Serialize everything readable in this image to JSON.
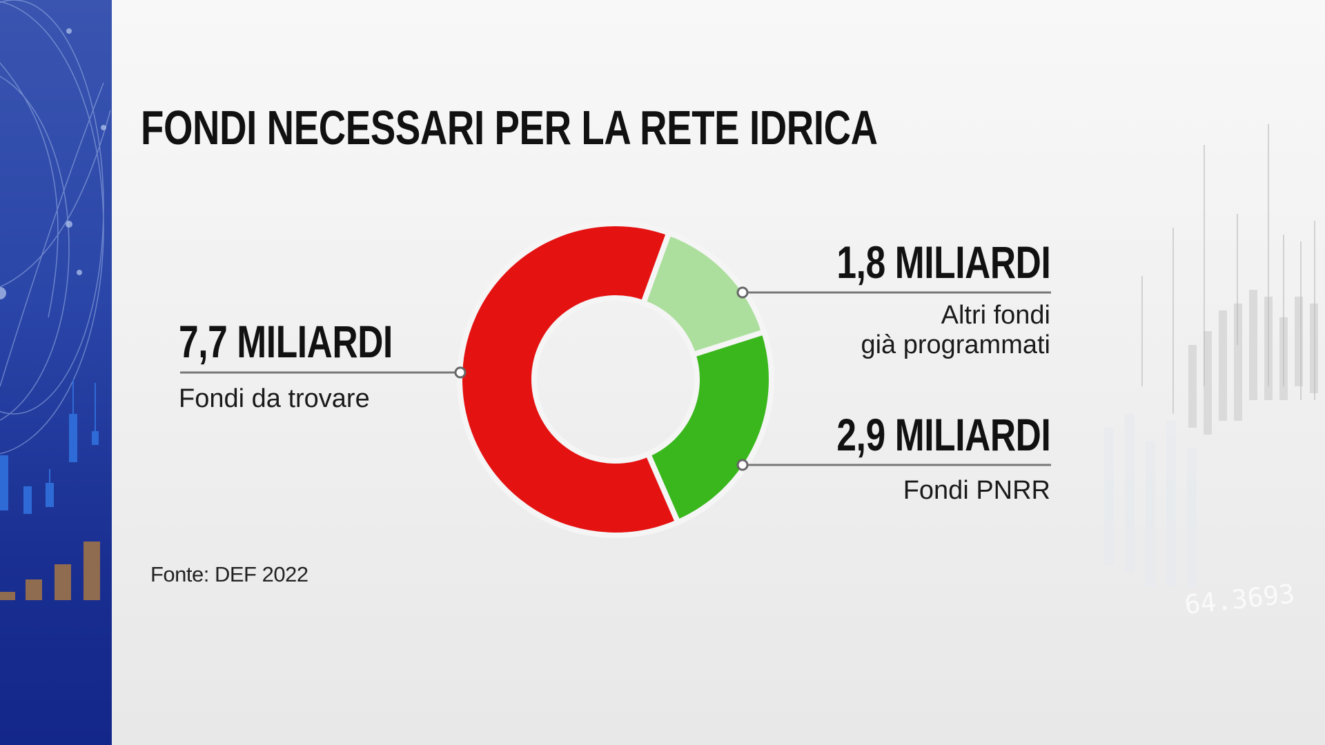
{
  "title": "FONDI NECESSARI PER LA RETE IDRICA",
  "chart_data": {
    "type": "pie",
    "variant": "donut",
    "title": "FONDI NECESSARI PER LA RETE IDRICA",
    "unit": "MILIARDI",
    "slices": [
      {
        "value": 7.7,
        "value_label": "7,7 MILIARDI",
        "label": "Fondi da trovare",
        "color": "#e51212"
      },
      {
        "value": 1.8,
        "value_label": "1,8 MILIARDI",
        "label": "Altri fondi già programmati",
        "label_lines": [
          "Altri fondi",
          "già programmati"
        ],
        "color": "#acdf9d"
      },
      {
        "value": 2.9,
        "value_label": "2,9 MILIARDI",
        "label": "Fondi PNRR",
        "color": "#39b71c"
      }
    ]
  },
  "source": "Fonte: DEF 2022",
  "background_number": "64.3693",
  "colors": {
    "side_panel": "#2a46a8",
    "leader_line": "#777777",
    "text": "#111111"
  }
}
